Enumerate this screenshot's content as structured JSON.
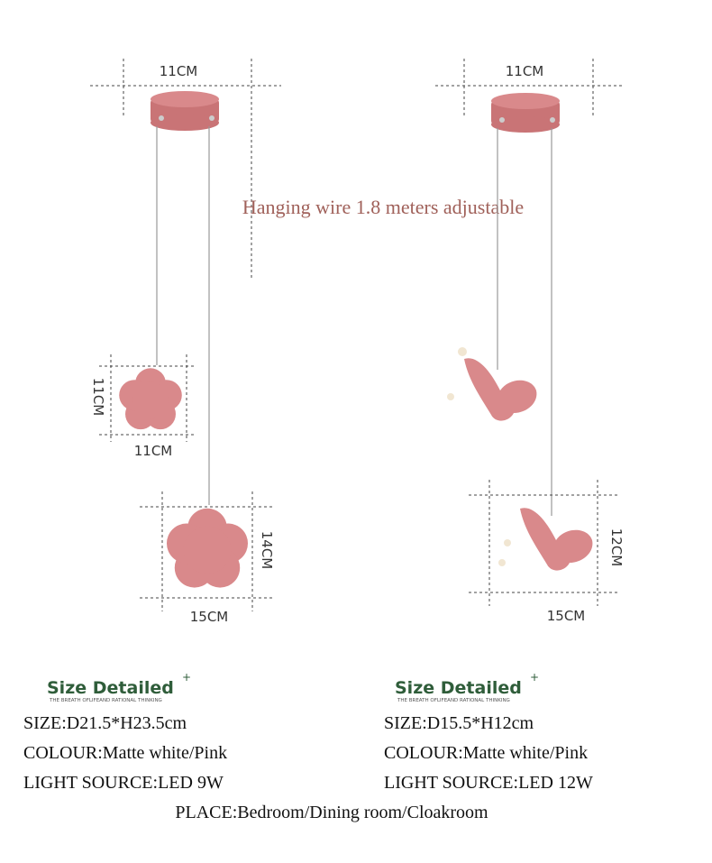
{
  "left_lamp": {
    "canopy_width": "11CM",
    "small_height": "11CM",
    "small_width": "11CM",
    "large_height": "14CM",
    "large_width": "15CM"
  },
  "wire_note": "Hanging wire 1.8 meters adjustable",
  "right_lamp": {
    "canopy_width": "11CM",
    "large_height": "12CM",
    "large_width": "15CM"
  },
  "specs": [
    {
      "heading": "Size Detailed",
      "plus": "+",
      "tagline": "THE BREATH OFLIFEAND RATIONAL THINKING",
      "lines": [
        "SIZE:D21.5*H23.5cm",
        "COLOUR:Matte white/Pink",
        "LIGHT SOURCE:LED 9W"
      ]
    },
    {
      "heading": "Size Detailed",
      "plus": "+",
      "tagline": "THE BREATH OFLIFEAND RATIONAL THINKING",
      "lines": [
        "SIZE:D15.5*H12cm",
        "COLOUR:Matte white/Pink",
        "LIGHT SOURCE:LED 12W"
      ]
    }
  ],
  "place": "PLACE:Bedroom/Dining room/Cloakroom"
}
